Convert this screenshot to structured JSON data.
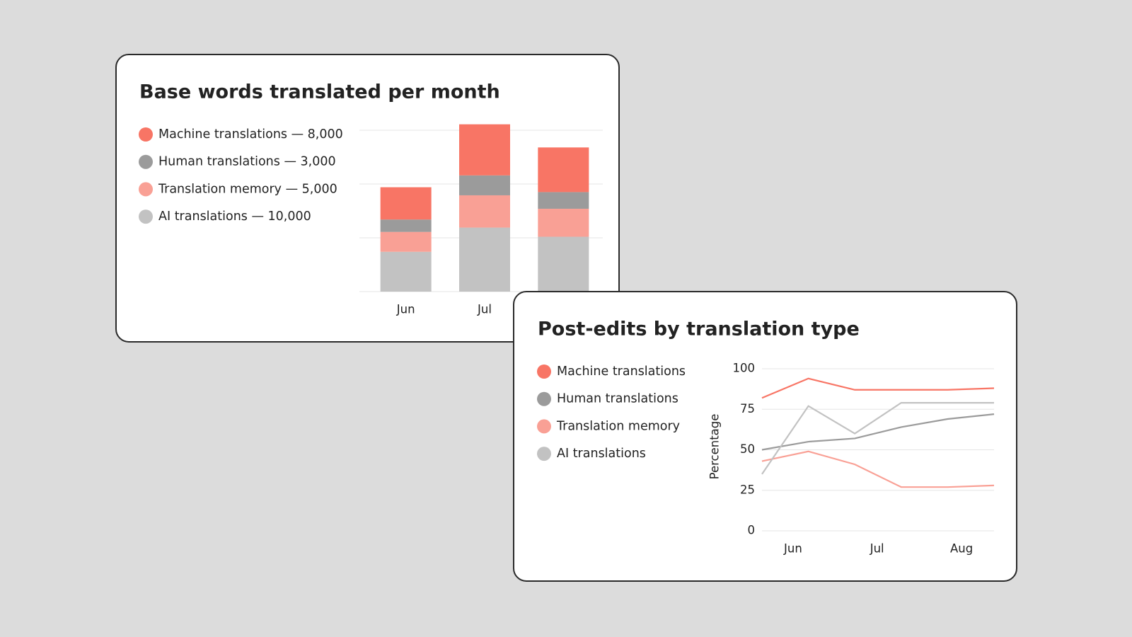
{
  "chart_data": [
    {
      "type": "stacked_bar",
      "title": "Base words translated per month",
      "categories": [
        "Jun",
        "Jul",
        null
      ],
      "series": [
        {
          "name": "AI translations — 10,000",
          "color": "#c2c2c2",
          "values": [
            740,
            1190,
            1020
          ]
        },
        {
          "name": "Translation memory — 5,000",
          "color": "#f9a095",
          "values": [
            370,
            600,
            520
          ]
        },
        {
          "name": "Human translations — 3,000",
          "color": "#9b9b9b",
          "values": [
            230,
            370,
            310
          ]
        },
        {
          "name": "Machine translations — 8,000",
          "color": "#f87565",
          "values": [
            600,
            950,
            830
          ]
        }
      ],
      "ylim": [
        0,
        3000
      ],
      "yticks": [
        0,
        1000,
        2000,
        3000
      ],
      "grid": true
    },
    {
      "type": "line",
      "title": "Post-edits by translation type",
      "ylabel": "Percentage",
      "x": [
        0,
        1,
        2,
        3,
        4,
        5
      ],
      "xlim": [
        0,
        5
      ],
      "xticks": [
        {
          "value": 0.67,
          "label": "Jun"
        },
        {
          "value": 2.48,
          "label": "Jul"
        },
        {
          "value": 4.3,
          "label": "Aug"
        }
      ],
      "series": [
        {
          "name": "Machine translations",
          "color": "#f87565",
          "values": [
            82,
            94,
            87,
            87,
            87,
            88
          ]
        },
        {
          "name": "Human translations",
          "color": "#9b9b9b",
          "values": [
            50,
            55,
            57,
            64,
            69,
            72
          ]
        },
        {
          "name": "Translation memory",
          "color": "#f9a095",
          "values": [
            43,
            49,
            41,
            27,
            27,
            28
          ]
        },
        {
          "name": "AI translations",
          "color": "#c2c2c2",
          "values": [
            35,
            77,
            60,
            79,
            79,
            79
          ]
        }
      ],
      "ylim": [
        0,
        100
      ],
      "yticks": [
        0,
        25,
        50,
        75,
        100
      ],
      "grid": true
    }
  ]
}
